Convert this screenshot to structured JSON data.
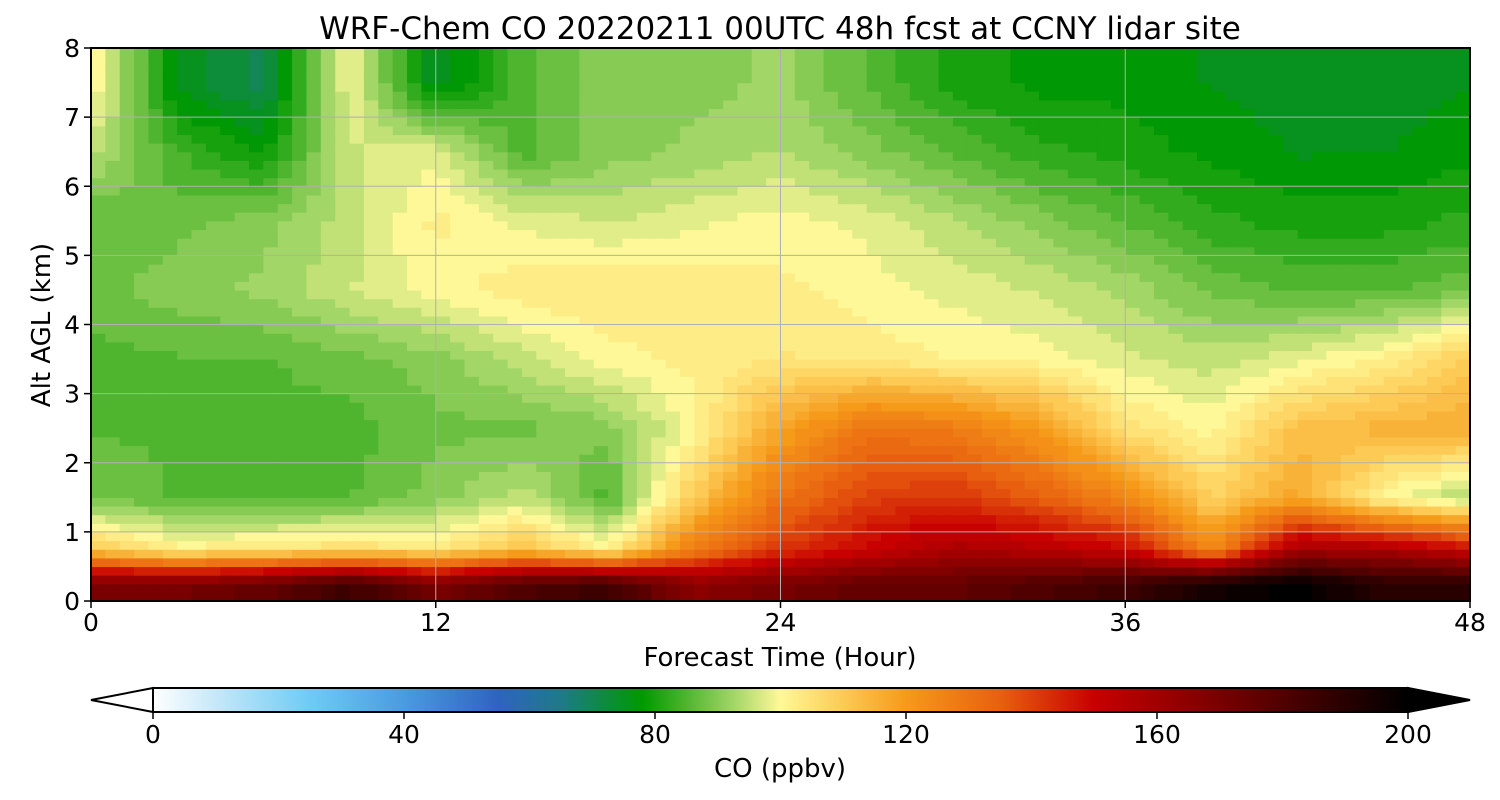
{
  "chart_data": {
    "type": "heatmap",
    "title": "WRF-Chem CO  20220211 00UTC 48h fcst at CCNY lidar site",
    "xlabel": "Forecast Time (Hour)",
    "ylabel": "Alt AGL (km)",
    "xlim": [
      0,
      48
    ],
    "ylim": [
      0,
      8
    ],
    "x_ticks": [
      0,
      12,
      24,
      36,
      48
    ],
    "x_tick_labels": [
      "0",
      "12",
      "24",
      "36",
      "48"
    ],
    "y_ticks": [
      0,
      1,
      2,
      3,
      4,
      5,
      6,
      7,
      8
    ],
    "y_tick_labels": [
      "0",
      "1",
      "2",
      "3",
      "4",
      "5",
      "6",
      "7",
      "8"
    ],
    "grid": true,
    "x": [
      0,
      3,
      6,
      9,
      12,
      15,
      18,
      21,
      24,
      27,
      30,
      33,
      36,
      39,
      42,
      45,
      48
    ],
    "y": [
      0.25,
      0.75,
      1.5,
      2.5,
      3.5,
      4.5,
      5.5,
      6.5,
      7.5
    ],
    "z_units": "ppbv",
    "z": [
      [
        170,
        170,
        175,
        185,
        170,
        180,
        185,
        165,
        170,
        175,
        175,
        180,
        185,
        195,
        200,
        190,
        190
      ],
      [
        110,
        102,
        104,
        106,
        104,
        112,
        101,
        128,
        142,
        150,
        158,
        155,
        150,
        124,
        160,
        158,
        150
      ],
      [
        88,
        86,
        85,
        86,
        90,
        95,
        85,
        110,
        130,
        140,
        142,
        135,
        125,
        108,
        118,
        100,
        92
      ],
      [
        86,
        86,
        85,
        85,
        88,
        88,
        90,
        100,
        118,
        130,
        128,
        120,
        105,
        100,
        112,
        115,
        116
      ],
      [
        85,
        86,
        86,
        88,
        90,
        95,
        100,
        102,
        104,
        103,
        101,
        100,
        97,
        95,
        98,
        102,
        110
      ],
      [
        88,
        90,
        92,
        96,
        100,
        103,
        104,
        103,
        102,
        100,
        98,
        96,
        93,
        88,
        86,
        86,
        88
      ],
      [
        86,
        88,
        90,
        95,
        102,
        98,
        96,
        98,
        100,
        98,
        94,
        90,
        86,
        82,
        80,
        80,
        82
      ],
      [
        95,
        84,
        78,
        96,
        98,
        85,
        90,
        92,
        94,
        90,
        86,
        82,
        80,
        78,
        76,
        76,
        78
      ],
      [
        102,
        75,
        70,
        99,
        74,
        85,
        90,
        90,
        92,
        86,
        80,
        78,
        78,
        76,
        75,
        75,
        76
      ]
    ],
    "colorbar": {
      "label": "CO  (ppbv)",
      "min": 0,
      "max": 200,
      "ticks": [
        0,
        40,
        80,
        120,
        160,
        200
      ],
      "tick_labels": [
        "0",
        "40",
        "80",
        "120",
        "160",
        "200"
      ],
      "extend": "both"
    },
    "colormap": [
      [
        0,
        "#ffffff"
      ],
      [
        10,
        "#c6e8f8"
      ],
      [
        25,
        "#6ecbf5"
      ],
      [
        40,
        "#4a9be0"
      ],
      [
        55,
        "#2f63c1"
      ],
      [
        65,
        "#1e7a88"
      ],
      [
        78,
        "#009900"
      ],
      [
        85,
        "#4fb52f"
      ],
      [
        93,
        "#a8d86a"
      ],
      [
        100,
        "#fff898"
      ],
      [
        110,
        "#fcca55"
      ],
      [
        120,
        "#f69a1a"
      ],
      [
        135,
        "#e8600f"
      ],
      [
        150,
        "#c80000"
      ],
      [
        175,
        "#650000"
      ],
      [
        200,
        "#000000"
      ]
    ]
  }
}
